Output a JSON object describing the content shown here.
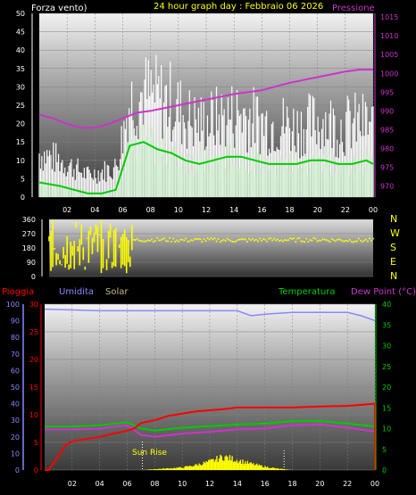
{
  "header": {
    "left_label": "Forza vento)",
    "title": "24 hour graph day : Febbraio 06 2026",
    "right_label": "Pressione"
  },
  "bottom_header": {
    "rain_label": "Pioggia",
    "humidity_label": "Umidita",
    "solar_label": "Solar",
    "temp_label": "Temperatura",
    "dew_label": "Dew Point (°C)"
  },
  "annotation": {
    "sunrise": "Sun Rise"
  },
  "colors": {
    "wind_gust": "#ffffff",
    "wind_avg": "#d8f5d8",
    "wind_avg_line": "#00cc00",
    "pressure": "#cc33cc",
    "direction": "#ffff00",
    "rain": "#ff0000",
    "humidity": "#8888ff",
    "solar": "#ffff00",
    "temperature": "#00cc00",
    "dewpoint": "#cc33cc"
  },
  "chart_data": [
    {
      "type": "line",
      "name": "wind",
      "x_ticks": [
        "02",
        "04",
        "06",
        "08",
        "10",
        "12",
        "14",
        "16",
        "18",
        "20",
        "22",
        "00"
      ],
      "y_left_ticks": [
        "0",
        "5",
        "10",
        "15",
        "20",
        "25",
        "30",
        "35",
        "40",
        "45",
        "50"
      ],
      "y_left_range": [
        0,
        50
      ],
      "y_right_ticks": [
        "970",
        "975",
        "980",
        "985",
        "990",
        "995",
        "1000",
        "1005",
        "1010",
        "1015"
      ],
      "y_right_range": [
        967,
        1016
      ],
      "series": [
        {
          "key": "gust",
          "x": [
            0,
            1.5,
            2.5,
            3.5,
            4.5,
            5.5,
            6.5,
            7.5,
            8.5,
            9.5,
            10.5,
            11.5,
            12.5,
            13.5,
            14.5,
            15.5,
            16.5,
            17.5,
            18.5,
            19.5,
            20.5,
            21.5,
            22.5,
            23.5,
            24
          ],
          "values": [
            12,
            10,
            8,
            6,
            7,
            8,
            26,
            28,
            27,
            26,
            22,
            20,
            21,
            22,
            23,
            21,
            20,
            20,
            19,
            20,
            21,
            19,
            20,
            20,
            19
          ]
        },
        {
          "key": "avg",
          "x": [
            0,
            1.5,
            2.5,
            3.5,
            4.5,
            5.5,
            6.5,
            7.5,
            8.5,
            9.5,
            10.5,
            11.5,
            12.5,
            13.5,
            14.5,
            15.5,
            16.5,
            17.5,
            18.5,
            19.5,
            20.5,
            21.5,
            22.5,
            23.5,
            24
          ],
          "values": [
            4,
            3,
            2,
            1,
            1,
            2,
            14,
            15,
            13,
            12,
            10,
            9,
            10,
            11,
            11,
            10,
            9,
            9,
            9,
            10,
            10,
            9,
            9,
            10,
            9
          ]
        },
        {
          "key": "pressure",
          "x": [
            0,
            1,
            2,
            3,
            4,
            5,
            6,
            7,
            8,
            10,
            12,
            14,
            16,
            18,
            20,
            22,
            23,
            24
          ],
          "values": [
            989,
            988,
            986.5,
            985.5,
            985.5,
            986.5,
            988,
            989.5,
            990,
            991.5,
            993,
            994.5,
            995.5,
            997.5,
            999,
            1000.5,
            1001,
            1001
          ]
        }
      ]
    },
    {
      "type": "scatter",
      "name": "direction",
      "x_ticks": [
        "02",
        "04",
        "06",
        "08",
        "10",
        "12",
        "14",
        "16",
        "18",
        "20",
        "22",
        "00"
      ],
      "y_ticks": [
        "0",
        "90",
        "180",
        "270",
        "360"
      ],
      "y_range": [
        0,
        360
      ],
      "compass": [
        "N",
        "W",
        "S",
        "E",
        "N"
      ],
      "x": [
        0,
        1,
        2,
        3,
        4,
        5,
        6,
        8,
        10,
        12,
        14,
        16,
        18,
        20,
        22,
        24
      ],
      "values": [
        200,
        210,
        190,
        220,
        180,
        200,
        230,
        232,
        229,
        230,
        228,
        231,
        230,
        232,
        229,
        227
      ]
    },
    {
      "type": "line",
      "name": "temperature-humidity-rain",
      "x_ticks": [
        "02",
        "04",
        "06",
        "08",
        "10",
        "12",
        "14",
        "16",
        "18",
        "20",
        "22",
        "00"
      ],
      "y_humidity_ticks": [
        "0",
        "10",
        "20",
        "30",
        "40",
        "50",
        "60",
        "70",
        "80",
        "90",
        "100"
      ],
      "y_humidity_range": [
        0,
        100
      ],
      "y_rain_ticks": [
        "0",
        "5",
        "10",
        "15",
        "20",
        "25",
        "30"
      ],
      "y_rain_range": [
        0,
        30
      ],
      "y_temp_ticks": [
        "0",
        "5",
        "10",
        "15",
        "20",
        "25",
        "30",
        "35",
        "40"
      ],
      "y_temp_range": [
        0,
        40
      ],
      "series": [
        {
          "key": "humidity",
          "x": [
            0,
            4,
            8,
            12,
            14,
            15,
            16,
            18,
            20,
            22,
            23,
            24
          ],
          "values": [
            97,
            96,
            96,
            96,
            96,
            93,
            94,
            95,
            95,
            95,
            93,
            90
          ]
        },
        {
          "key": "rain",
          "x": [
            0,
            0.3,
            1,
            1.5,
            2,
            3,
            4,
            5,
            5.8,
            6.5,
            7,
            8,
            9,
            10,
            11,
            12,
            13,
            14,
            16,
            18,
            20,
            22,
            24
          ],
          "values": [
            0,
            0,
            2.5,
            4.5,
            5.2,
            5.6,
            6,
            6.6,
            7,
            7.5,
            8.5,
            9,
            9.8,
            10.2,
            10.6,
            10.8,
            11,
            11.3,
            11.3,
            11.3,
            11.5,
            11.6,
            12
          ]
        },
        {
          "key": "temperature",
          "x": [
            0,
            2,
            4,
            6,
            7,
            8,
            10,
            12,
            14,
            16,
            18,
            20,
            22,
            24
          ],
          "values": [
            10.5,
            10.5,
            10.8,
            11.5,
            10,
            9.5,
            10.2,
            10.6,
            11,
            11.2,
            11.8,
            11.8,
            11.2,
            10.5
          ]
        },
        {
          "key": "dewpoint",
          "x": [
            0,
            2,
            4,
            6,
            7,
            8,
            10,
            12,
            14,
            16,
            18,
            20,
            22,
            24
          ],
          "values": [
            9.8,
            9.8,
            10,
            10.8,
            8.5,
            8,
            8.8,
            9.2,
            9.8,
            10,
            10.8,
            11,
            10.2,
            9.3
          ]
        },
        {
          "key": "solar",
          "x": [
            6,
            7,
            8,
            9,
            10,
            11,
            12,
            13,
            14,
            15,
            16,
            17,
            18
          ],
          "values": [
            0,
            0,
            0.2,
            0.4,
            0.6,
            1.2,
            2,
            3.2,
            2.4,
            1.5,
            0.8,
            0.3,
            0
          ]
        }
      ]
    }
  ]
}
